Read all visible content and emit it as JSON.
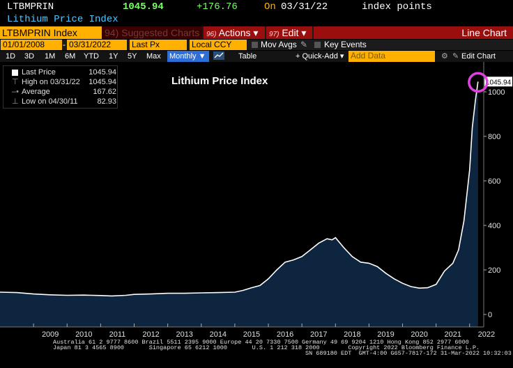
{
  "header": {
    "ticker": "LTBMPRIN",
    "price": "1045.94",
    "change": "+176.76",
    "on_label": "On",
    "date": "03/31/22",
    "units": "index points",
    "security_name": "Lithium Price Index"
  },
  "toolbar": {
    "security": "LTBMPRIN Index",
    "suggested": "94) Suggested Charts",
    "actions_num": "96)",
    "actions": "Actions ▾",
    "edit_num": "97)",
    "edit": "Edit ▾",
    "line_chart": "Line Chart"
  },
  "fields": {
    "start_date": "01/01/2008",
    "end_date": "03/31/2022",
    "field": "Last Px",
    "currency": "Local CCY",
    "mov_avgs": "Mov Avgs",
    "key_events": "Key Events"
  },
  "periods": {
    "items": [
      "1D",
      "3D",
      "1M",
      "6M",
      "YTD",
      "1Y",
      "5Y",
      "Max"
    ],
    "frequency": "Monthly ▼",
    "table": "Table",
    "quick_add": "+ Quick-Add ▾",
    "add_data_placeholder": "Add Data",
    "edit_chart": "Edit Chart"
  },
  "legend": {
    "rows": [
      {
        "key": "Last Price",
        "value": "1045.94"
      },
      {
        "key": "High on 03/31/22",
        "value": "1045.94"
      },
      {
        "key": "Average",
        "value": "167.62"
      },
      {
        "key": "Low on 04/30/11",
        "value": "82.93"
      }
    ]
  },
  "chart_data": {
    "type": "area",
    "title": "Lithium Price Index",
    "xlabel": "",
    "ylabel": "",
    "ylim": [
      0,
      1100
    ],
    "y_ticks": [
      0,
      200,
      400,
      600,
      800,
      1000
    ],
    "x_ticks": [
      "2009",
      "2010",
      "2011",
      "2012",
      "2013",
      "2014",
      "2015",
      "2016",
      "2017",
      "2018",
      "2019",
      "2020",
      "2021",
      "2022"
    ],
    "last_value_label": "1045.94",
    "grid": false,
    "colors": {
      "line": "#ffffff",
      "fill": "#0e2540",
      "highlight": "#e040e0"
    },
    "series": [
      {
        "x": [
          2008.0,
          2008.5,
          2009.0,
          2009.5,
          2010.0,
          2010.5,
          2011.0,
          2011.33,
          2011.75,
          2012.0,
          2012.5,
          2013.0,
          2013.5,
          2014.0,
          2014.5,
          2015.0,
          2015.25,
          2015.5,
          2015.75,
          2016.0,
          2016.25,
          2016.5,
          2016.75,
          2017.0,
          2017.25,
          2017.5,
          2017.75,
          2017.9,
          2018.0,
          2018.25,
          2018.5,
          2018.75,
          2019.0,
          2019.25,
          2019.5,
          2019.75,
          2020.0,
          2020.25,
          2020.5,
          2020.75,
          2021.0,
          2021.25,
          2021.5,
          2021.67,
          2021.83,
          2022.0,
          2022.08,
          2022.17,
          2022.25
        ],
        "values": [
          100,
          98,
          92,
          88,
          86,
          87,
          85,
          83,
          86,
          90,
          92,
          95,
          95,
          97,
          98,
          100,
          108,
          120,
          130,
          160,
          200,
          235,
          245,
          260,
          290,
          320,
          340,
          335,
          345,
          300,
          260,
          235,
          230,
          215,
          185,
          160,
          140,
          125,
          118,
          120,
          135,
          195,
          230,
          290,
          420,
          650,
          840,
          960,
          1045.94
        ]
      }
    ]
  },
  "footer": {
    "line1": "Australia 61 2 9777 8600 Brazil 5511 2395 9000 Europe 44 20 7330 7500 Germany 49 69 9204 1210 Hong Kong 852 2977 6000",
    "line2": "Japan 81 3 4565 8900       Singapore 65 6212 1000       U.S. 1 212 318 2000        Copyright 2022 Bloomberg Finance L.P.",
    "line3": "SN 689180 EDT  GMT-4:00 G657-7817-172 31-Mar-2022 10:32:03"
  }
}
